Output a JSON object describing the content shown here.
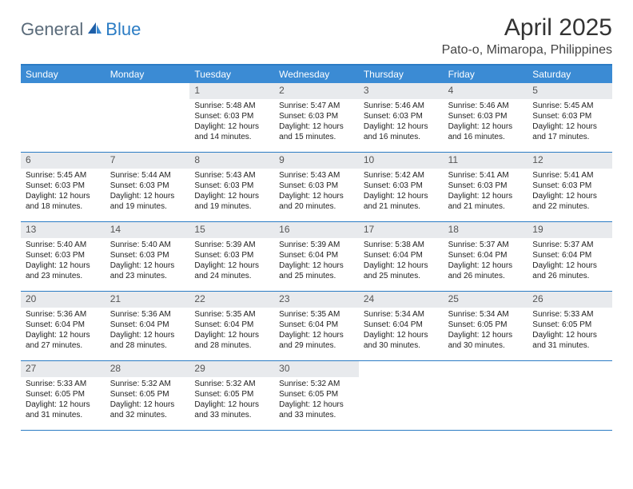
{
  "logo": {
    "part1": "General",
    "part2": "Blue"
  },
  "title": "April 2025",
  "location": "Pato-o, Mimaropa, Philippines",
  "colors": {
    "header_bar": "#3b8bd4",
    "border": "#2b7cc4",
    "daynum_bg": "#e8eaed",
    "text": "#222222",
    "logo_gray": "#5a6b7a",
    "logo_blue": "#2b7cc4"
  },
  "weekdays": [
    "Sunday",
    "Monday",
    "Tuesday",
    "Wednesday",
    "Thursday",
    "Friday",
    "Saturday"
  ],
  "weeks": [
    [
      {
        "e": true
      },
      {
        "e": true
      },
      {
        "n": "1",
        "sr": "Sunrise: 5:48 AM",
        "ss": "Sunset: 6:03 PM",
        "d1": "Daylight: 12 hours",
        "d2": "and 14 minutes."
      },
      {
        "n": "2",
        "sr": "Sunrise: 5:47 AM",
        "ss": "Sunset: 6:03 PM",
        "d1": "Daylight: 12 hours",
        "d2": "and 15 minutes."
      },
      {
        "n": "3",
        "sr": "Sunrise: 5:46 AM",
        "ss": "Sunset: 6:03 PM",
        "d1": "Daylight: 12 hours",
        "d2": "and 16 minutes."
      },
      {
        "n": "4",
        "sr": "Sunrise: 5:46 AM",
        "ss": "Sunset: 6:03 PM",
        "d1": "Daylight: 12 hours",
        "d2": "and 16 minutes."
      },
      {
        "n": "5",
        "sr": "Sunrise: 5:45 AM",
        "ss": "Sunset: 6:03 PM",
        "d1": "Daylight: 12 hours",
        "d2": "and 17 minutes."
      }
    ],
    [
      {
        "n": "6",
        "sr": "Sunrise: 5:45 AM",
        "ss": "Sunset: 6:03 PM",
        "d1": "Daylight: 12 hours",
        "d2": "and 18 minutes."
      },
      {
        "n": "7",
        "sr": "Sunrise: 5:44 AM",
        "ss": "Sunset: 6:03 PM",
        "d1": "Daylight: 12 hours",
        "d2": "and 19 minutes."
      },
      {
        "n": "8",
        "sr": "Sunrise: 5:43 AM",
        "ss": "Sunset: 6:03 PM",
        "d1": "Daylight: 12 hours",
        "d2": "and 19 minutes."
      },
      {
        "n": "9",
        "sr": "Sunrise: 5:43 AM",
        "ss": "Sunset: 6:03 PM",
        "d1": "Daylight: 12 hours",
        "d2": "and 20 minutes."
      },
      {
        "n": "10",
        "sr": "Sunrise: 5:42 AM",
        "ss": "Sunset: 6:03 PM",
        "d1": "Daylight: 12 hours",
        "d2": "and 21 minutes."
      },
      {
        "n": "11",
        "sr": "Sunrise: 5:41 AM",
        "ss": "Sunset: 6:03 PM",
        "d1": "Daylight: 12 hours",
        "d2": "and 21 minutes."
      },
      {
        "n": "12",
        "sr": "Sunrise: 5:41 AM",
        "ss": "Sunset: 6:03 PM",
        "d1": "Daylight: 12 hours",
        "d2": "and 22 minutes."
      }
    ],
    [
      {
        "n": "13",
        "sr": "Sunrise: 5:40 AM",
        "ss": "Sunset: 6:03 PM",
        "d1": "Daylight: 12 hours",
        "d2": "and 23 minutes."
      },
      {
        "n": "14",
        "sr": "Sunrise: 5:40 AM",
        "ss": "Sunset: 6:03 PM",
        "d1": "Daylight: 12 hours",
        "d2": "and 23 minutes."
      },
      {
        "n": "15",
        "sr": "Sunrise: 5:39 AM",
        "ss": "Sunset: 6:03 PM",
        "d1": "Daylight: 12 hours",
        "d2": "and 24 minutes."
      },
      {
        "n": "16",
        "sr": "Sunrise: 5:39 AM",
        "ss": "Sunset: 6:04 PM",
        "d1": "Daylight: 12 hours",
        "d2": "and 25 minutes."
      },
      {
        "n": "17",
        "sr": "Sunrise: 5:38 AM",
        "ss": "Sunset: 6:04 PM",
        "d1": "Daylight: 12 hours",
        "d2": "and 25 minutes."
      },
      {
        "n": "18",
        "sr": "Sunrise: 5:37 AM",
        "ss": "Sunset: 6:04 PM",
        "d1": "Daylight: 12 hours",
        "d2": "and 26 minutes."
      },
      {
        "n": "19",
        "sr": "Sunrise: 5:37 AM",
        "ss": "Sunset: 6:04 PM",
        "d1": "Daylight: 12 hours",
        "d2": "and 26 minutes."
      }
    ],
    [
      {
        "n": "20",
        "sr": "Sunrise: 5:36 AM",
        "ss": "Sunset: 6:04 PM",
        "d1": "Daylight: 12 hours",
        "d2": "and 27 minutes."
      },
      {
        "n": "21",
        "sr": "Sunrise: 5:36 AM",
        "ss": "Sunset: 6:04 PM",
        "d1": "Daylight: 12 hours",
        "d2": "and 28 minutes."
      },
      {
        "n": "22",
        "sr": "Sunrise: 5:35 AM",
        "ss": "Sunset: 6:04 PM",
        "d1": "Daylight: 12 hours",
        "d2": "and 28 minutes."
      },
      {
        "n": "23",
        "sr": "Sunrise: 5:35 AM",
        "ss": "Sunset: 6:04 PM",
        "d1": "Daylight: 12 hours",
        "d2": "and 29 minutes."
      },
      {
        "n": "24",
        "sr": "Sunrise: 5:34 AM",
        "ss": "Sunset: 6:04 PM",
        "d1": "Daylight: 12 hours",
        "d2": "and 30 minutes."
      },
      {
        "n": "25",
        "sr": "Sunrise: 5:34 AM",
        "ss": "Sunset: 6:05 PM",
        "d1": "Daylight: 12 hours",
        "d2": "and 30 minutes."
      },
      {
        "n": "26",
        "sr": "Sunrise: 5:33 AM",
        "ss": "Sunset: 6:05 PM",
        "d1": "Daylight: 12 hours",
        "d2": "and 31 minutes."
      }
    ],
    [
      {
        "n": "27",
        "sr": "Sunrise: 5:33 AM",
        "ss": "Sunset: 6:05 PM",
        "d1": "Daylight: 12 hours",
        "d2": "and 31 minutes."
      },
      {
        "n": "28",
        "sr": "Sunrise: 5:32 AM",
        "ss": "Sunset: 6:05 PM",
        "d1": "Daylight: 12 hours",
        "d2": "and 32 minutes."
      },
      {
        "n": "29",
        "sr": "Sunrise: 5:32 AM",
        "ss": "Sunset: 6:05 PM",
        "d1": "Daylight: 12 hours",
        "d2": "and 33 minutes."
      },
      {
        "n": "30",
        "sr": "Sunrise: 5:32 AM",
        "ss": "Sunset: 6:05 PM",
        "d1": "Daylight: 12 hours",
        "d2": "and 33 minutes."
      },
      {
        "e": true
      },
      {
        "e": true
      },
      {
        "e": true
      }
    ]
  ]
}
